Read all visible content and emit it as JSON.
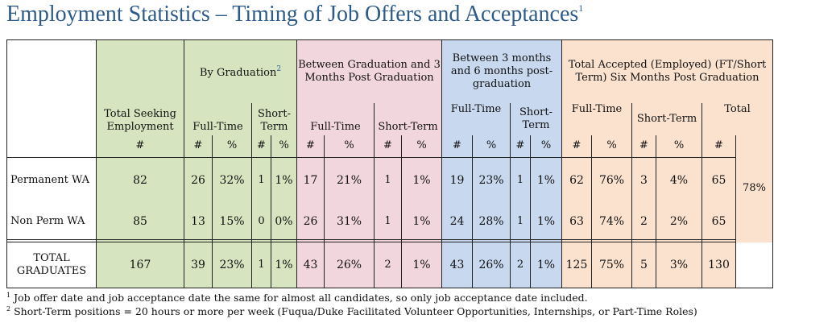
{
  "title": {
    "text": "Employment Statistics – Timing of Job Offers and Acceptances",
    "sup": "1"
  },
  "headers": {
    "total_seeking": "Total Seeking Employment",
    "by_graduation": "By Graduation",
    "by_graduation_sup": "2",
    "grad_3mo": "Between Graduation and 3 Months Post Graduation",
    "three_six": "Between 3 months and 6 months post-graduation",
    "total_accepted": "Total Accepted (Employed) (FT/Short Term) Six Months Post Graduation",
    "full_time": "Full-Time",
    "short_term": "Short-Term",
    "total": "Total",
    "hash": "#",
    "pct": "%"
  },
  "rows": [
    {
      "label": "Permanent WA",
      "seeking": "82",
      "bygrad": [
        "26",
        "32%",
        "1",
        "1%"
      ],
      "g3": [
        "17",
        "21%",
        "1",
        "1%"
      ],
      "m36": [
        "19",
        "23%",
        "1",
        "1%"
      ],
      "total": [
        "62",
        "76%",
        "3",
        "4%",
        "65"
      ]
    },
    {
      "label": "Non Perm WA",
      "seeking": "85",
      "bygrad": [
        "13",
        "15%",
        "0",
        "0%"
      ],
      "g3": [
        "26",
        "31%",
        "1",
        "1%"
      ],
      "m36": [
        "24",
        "28%",
        "1",
        "1%"
      ],
      "total": [
        "63",
        "74%",
        "2",
        "2%",
        "65"
      ]
    },
    {
      "label": "TOTAL GRADUATES",
      "seeking": "167",
      "bygrad": [
        "39",
        "23%",
        "1",
        "1%"
      ],
      "g3": [
        "43",
        "26%",
        "2",
        "1%"
      ],
      "m36": [
        "43",
        "26%",
        "2",
        "1%"
      ],
      "total": [
        "125",
        "75%",
        "5",
        "3%",
        "130"
      ]
    }
  ],
  "overall_pct": "78%",
  "footnotes": [
    {
      "sup": "1",
      "text": "Job offer date and job acceptance date the same for almost all candidates, so only job acceptance date included."
    },
    {
      "sup": "2",
      "text": "Short-Term positions = 20 hours or more per week (Fuqua/Duke Facilitated Volunteer Opportunities, Internships, or Part-Time Roles)"
    }
  ],
  "colors": {
    "title": "#2e5c8a",
    "green": "#d6e4bf",
    "pink": "#f2d6dd",
    "blue": "#c8d8ef",
    "orange": "#fbe2cf"
  }
}
